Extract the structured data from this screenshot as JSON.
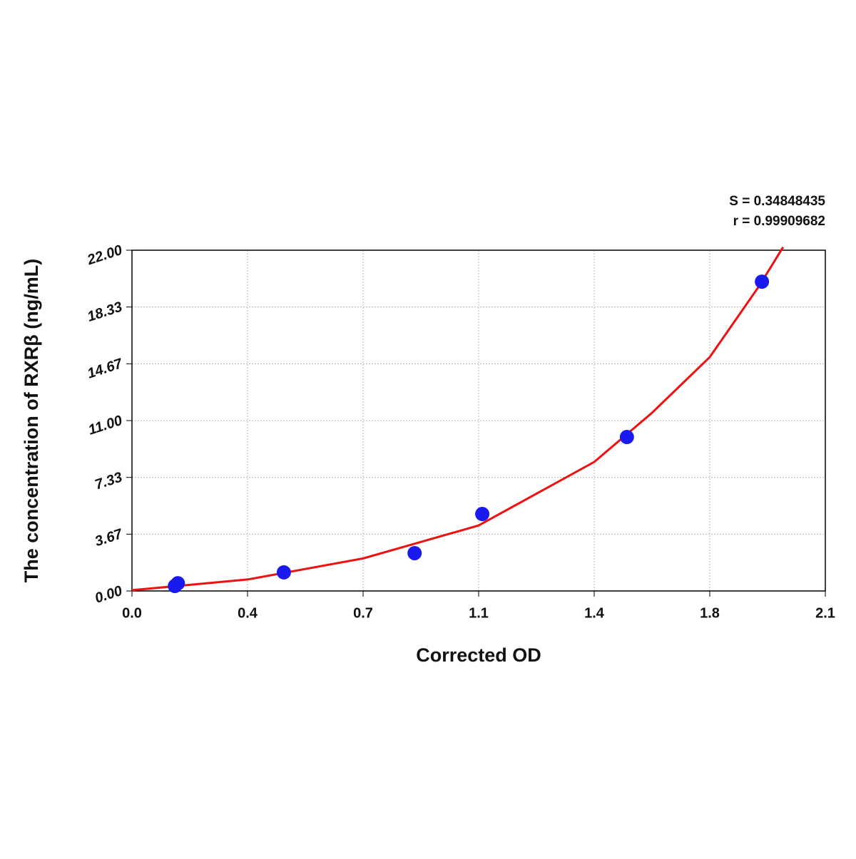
{
  "chart_data": {
    "type": "scatter",
    "annotations": [
      "S = 0.34848435",
      "r = 0.99909682"
    ],
    "x_label": "Corrected OD",
    "y_label": "The concentration of RXRβ (ng/mL)",
    "xlim": [
      0,
      2.1
    ],
    "ylim": [
      0,
      22
    ],
    "xticks": [
      {
        "value": 0,
        "label": "0.0"
      },
      {
        "value": 0.35,
        "label": "0.4"
      },
      0.7,
      {
        "value": 1.05,
        "label": "1.1"
      },
      1.4,
      {
        "value": 1.75,
        "label": "1.8"
      },
      2.1
    ],
    "yticks": [
      {
        "value": 0,
        "label": "0.00"
      },
      {
        "value": 3.667,
        "label": "3.67"
      },
      {
        "value": 7.333,
        "label": "7.33"
      },
      {
        "value": 11,
        "label": "11.00"
      },
      {
        "value": 14.667,
        "label": "14.67"
      },
      {
        "value": 18.333,
        "label": "18.33"
      },
      {
        "value": 22,
        "label": "22.00"
      }
    ],
    "grid": true,
    "series": [
      {
        "type": "line",
        "color": "#ee1111",
        "x": [
          0,
          0.35,
          0.7,
          1.05,
          1.4,
          1.575,
          1.75,
          1.9,
          1.972
        ],
        "values": [
          0.05,
          0.74,
          2.1,
          4.23,
          8.33,
          11.5,
          15.1,
          19.7,
          22.2
        ]
      },
      {
        "type": "scatter",
        "color": "#1a1aee",
        "x": [
          0.13,
          0.139,
          0.46,
          0.856,
          1.061,
          1.499,
          1.908
        ],
        "values": [
          0.32,
          0.5,
          1.2,
          2.44,
          4.97,
          9.94,
          19.97
        ]
      }
    ]
  }
}
